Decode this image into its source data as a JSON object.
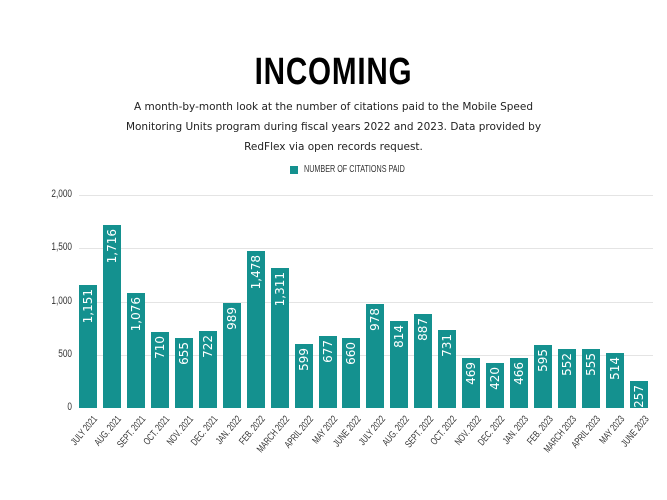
{
  "header": {
    "title": "INCOMING",
    "subtitle": "A month-by-month look at the number of citations paid to the Mobile Speed Monitoring Units program during fiscal years 2022 and 2023. Data provided by RedFlex via open records request."
  },
  "legend": {
    "label": "NUMBER OF CITATIONS PAID",
    "color": "#14918f"
  },
  "chart_data": {
    "type": "bar",
    "title": "INCOMING",
    "subtitle": "A month-by-month look at the number of citations paid to the Mobile Speed Monitoring Units program during fiscal years 2022 and 2023. Data provided by RedFlex via open records request.",
    "xlabel": "",
    "ylabel": "",
    "ylim": [
      0,
      2000
    ],
    "yticks": [
      "0",
      "500",
      "1,000",
      "1,500",
      "2,000"
    ],
    "grid": true,
    "legend_position": "top",
    "categories": [
      "JULY 2021",
      "AUG. 2021",
      "SEPT. 2021",
      "OCT. 2021",
      "NOV. 2021",
      "DEC. 2021",
      "JAN. 2022",
      "FEB. 2022",
      "MARCH 2022",
      "APRIL 2022",
      "MAY 2022",
      "JUNE 2022",
      "JULY 2022",
      "AUG. 2022",
      "SEPT. 2022",
      "OCT. 2022",
      "NOV. 2022",
      "DEC. 2022",
      "JAN. 2023",
      "FEB. 2023",
      "MARCH 2023",
      "APRIL 2023",
      "MAY 2023",
      "JUNE 2023"
    ],
    "series": [
      {
        "name": "NUMBER OF CITATIONS PAID",
        "color": "#14918f",
        "values": [
          1151,
          1716,
          1076,
          710,
          655,
          722,
          989,
          1478,
          1311,
          599,
          677,
          660,
          978,
          814,
          887,
          731,
          469,
          420,
          466,
          595,
          552,
          555,
          514,
          257
        ],
        "labels": [
          "1,151",
          "1,716",
          "1,076",
          "710",
          "655",
          "722",
          "989",
          "1,478",
          "1,311",
          "599",
          "677",
          "660",
          "978",
          "814",
          "887",
          "731",
          "469",
          "420",
          "466",
          "595",
          "552",
          "555",
          "514",
          "257"
        ]
      }
    ]
  }
}
